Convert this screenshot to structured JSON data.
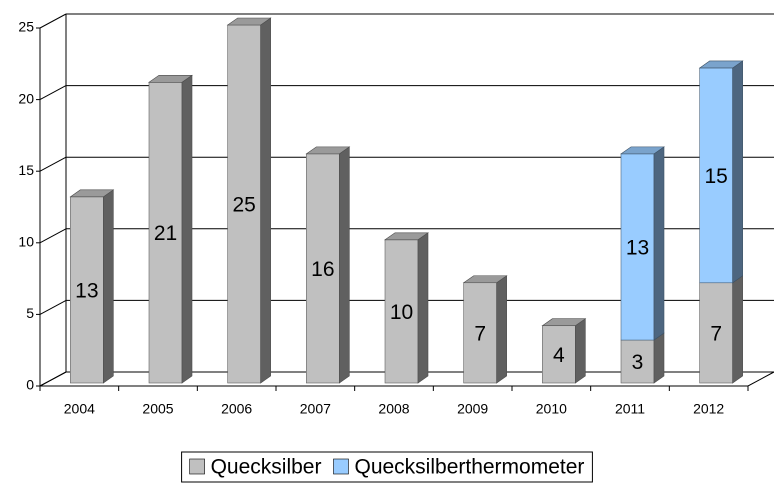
{
  "chart_data": {
    "type": "bar",
    "stacked": true,
    "three_d": true,
    "categories": [
      "2004",
      "2005",
      "2006",
      "2007",
      "2008",
      "2009",
      "2010",
      "2011",
      "2012"
    ],
    "series": [
      {
        "name": "Quecksilber",
        "color": "#c0c0c0",
        "values": [
          13,
          21,
          25,
          16,
          10,
          7,
          4,
          3,
          7
        ]
      },
      {
        "name": "Quecksilberthermometer",
        "color": "#99ccff",
        "values": [
          null,
          null,
          null,
          null,
          null,
          null,
          null,
          13,
          15
        ]
      }
    ],
    "ylim": [
      0,
      25
    ],
    "yticks": [
      0,
      5,
      10,
      15,
      20,
      25
    ],
    "grid": true,
    "legend": "bottom"
  }
}
